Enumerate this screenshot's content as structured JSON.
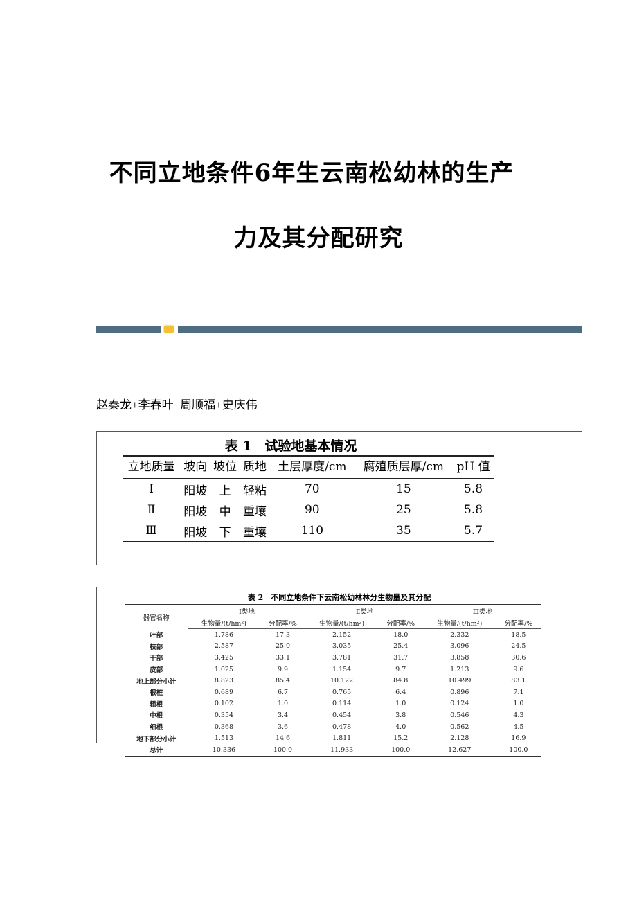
{
  "title_line1": "不同立地条件6年生云南松幼林的生产",
  "title_line2": "力及其分配研究",
  "authors": "赵秦龙+李春叶+周顺福+史庆伟",
  "table1": {
    "caption": "表 1　试验地基本情况",
    "headers": [
      "立地质量",
      "坡向",
      "坡位",
      "质地",
      "土层厚度/cm",
      "腐殖质层厚/cm",
      "pH 值"
    ],
    "rows": [
      [
        "Ⅰ",
        "阳坡",
        "上",
        "轻粘",
        "70",
        "15",
        "5.8"
      ],
      [
        "Ⅱ",
        "阳坡",
        "中",
        "重壤",
        "90",
        "25",
        "5.8"
      ],
      [
        "Ⅲ",
        "阳坡",
        "下",
        "重壤",
        "110",
        "35",
        "5.7"
      ]
    ]
  },
  "table2": {
    "caption": "表 2　不同立地条件下云南松幼林林分生物量及其分配",
    "row_header": "器官名称",
    "groups": [
      "Ⅰ类地",
      "Ⅱ类地",
      "Ⅲ类地"
    ],
    "sub_headers": [
      "生物量/(t/hm²)",
      "分配率/%"
    ],
    "rows": [
      [
        "叶部",
        "1.786",
        "17.3",
        "2.152",
        "18.0",
        "2.332",
        "18.5"
      ],
      [
        "枝部",
        "2.587",
        "25.0",
        "3.035",
        "25.4",
        "3.096",
        "24.5"
      ],
      [
        "干部",
        "3.425",
        "33.1",
        "3.781",
        "31.7",
        "3.858",
        "30.6"
      ],
      [
        "皮部",
        "1.025",
        "9.9",
        "1.154",
        "9.7",
        "1.213",
        "9.6"
      ],
      [
        "地上部分小计",
        "8.823",
        "85.4",
        "10.122",
        "84.8",
        "10.499",
        "83.1"
      ],
      [
        "根桩",
        "0.689",
        "6.7",
        "0.765",
        "6.4",
        "0.896",
        "7.1"
      ],
      [
        "粗根",
        "0.102",
        "1.0",
        "0.114",
        "1.0",
        "0.124",
        "1.0"
      ],
      [
        "中根",
        "0.354",
        "3.4",
        "0.454",
        "3.8",
        "0.546",
        "4.3"
      ],
      [
        "细根",
        "0.368",
        "3.6",
        "0.478",
        "4.0",
        "0.562",
        "4.5"
      ],
      [
        "地下部分小计",
        "1.513",
        "14.6",
        "1.811",
        "15.2",
        "2.128",
        "16.9"
      ],
      [
        "总计",
        "10.336",
        "100.0",
        "11.933",
        "100.0",
        "12.627",
        "100.0"
      ]
    ]
  },
  "colors": {
    "divider": "#4f6d80",
    "divider_badge": "#f2c230"
  }
}
